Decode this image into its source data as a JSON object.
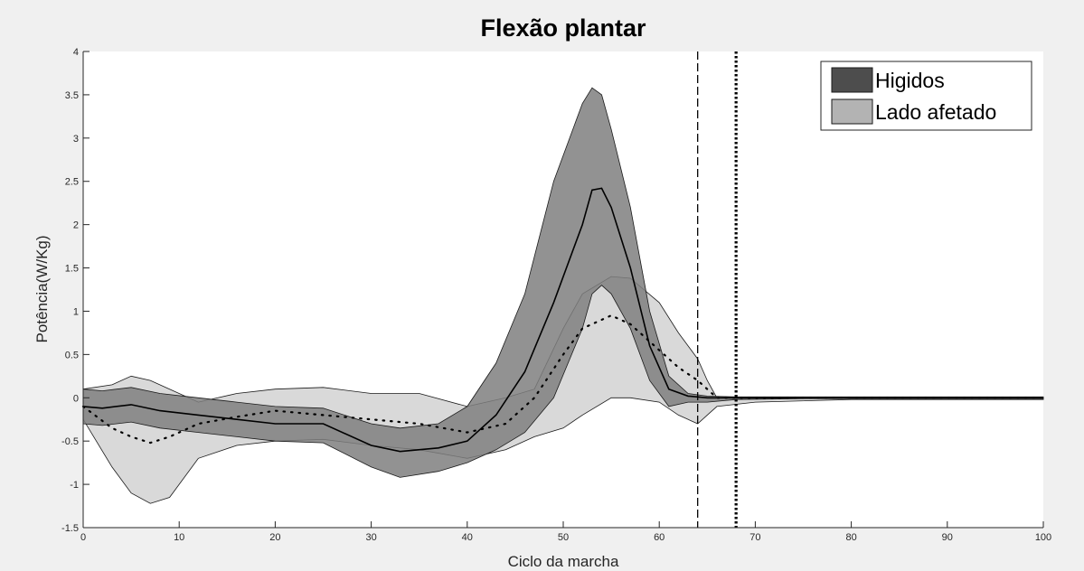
{
  "chart_data": {
    "type": "area",
    "title": "Flexão plantar",
    "xlabel": "Ciclo da marcha",
    "ylabel": "Potência(W/Kg)",
    "xlim": [
      0,
      100
    ],
    "ylim": [
      -1.5,
      4
    ],
    "xticks": [
      0,
      10,
      20,
      30,
      40,
      50,
      60,
      70,
      80,
      90,
      100
    ],
    "yticks": [
      -1.5,
      -1,
      -0.5,
      0,
      0.5,
      1,
      1.5,
      2,
      2.5,
      3,
      3.5,
      4
    ],
    "grid": false,
    "legend_position": "top-right",
    "legend": [
      {
        "name": "Higidos",
        "color": "#4d4d4d"
      },
      {
        "name": "Lado afetado",
        "color": "#b3b3b3"
      }
    ],
    "colors": {
      "higidos_band": "#7f7f7f",
      "afetado_band": "#d9d9d9",
      "line": "#000000",
      "background": "#ffffff"
    },
    "series": [
      {
        "name": "Higidos",
        "style": "solid-mean-with-dark-band",
        "x": [
          0,
          2,
          5,
          8,
          12,
          16,
          20,
          25,
          30,
          33,
          37,
          40,
          43,
          46,
          49,
          52,
          53,
          54,
          55,
          57,
          59,
          61,
          63,
          65,
          68,
          75,
          85,
          95,
          100
        ],
        "mean": [
          -0.1,
          -0.12,
          -0.08,
          -0.15,
          -0.2,
          -0.25,
          -0.3,
          -0.3,
          -0.55,
          -0.62,
          -0.58,
          -0.5,
          -0.2,
          0.3,
          1.1,
          2.0,
          2.4,
          2.42,
          2.2,
          1.5,
          0.6,
          0.1,
          0.02,
          0.0,
          0.0,
          0.0,
          0.0,
          0.0,
          0.0
        ],
        "upper": [
          0.1,
          0.08,
          0.12,
          0.05,
          0.0,
          -0.05,
          -0.1,
          -0.12,
          -0.3,
          -0.35,
          -0.3,
          -0.1,
          0.4,
          1.2,
          2.5,
          3.4,
          3.58,
          3.5,
          3.1,
          2.2,
          1.0,
          0.25,
          0.05,
          0.02,
          0.01,
          0.01,
          0.01,
          0.01,
          0.01
        ],
        "lower": [
          -0.3,
          -0.32,
          -0.28,
          -0.35,
          -0.4,
          -0.45,
          -0.5,
          -0.52,
          -0.8,
          -0.92,
          -0.85,
          -0.75,
          -0.6,
          -0.4,
          0.0,
          0.8,
          1.2,
          1.3,
          1.2,
          0.8,
          0.2,
          -0.1,
          -0.05,
          -0.05,
          -0.02,
          -0.01,
          -0.01,
          -0.01,
          -0.01
        ]
      },
      {
        "name": "Lado afetado",
        "style": "dotted-mean-with-light-band",
        "x": [
          0,
          3,
          5,
          7,
          9,
          12,
          16,
          20,
          25,
          30,
          35,
          40,
          44,
          47,
          50,
          52,
          55,
          57,
          60,
          62,
          64,
          65,
          66,
          70,
          80,
          90,
          100
        ],
        "mean": [
          -0.1,
          -0.35,
          -0.45,
          -0.52,
          -0.45,
          -0.3,
          -0.22,
          -0.15,
          -0.2,
          -0.25,
          -0.3,
          -0.4,
          -0.3,
          0.0,
          0.5,
          0.8,
          0.95,
          0.85,
          0.55,
          0.35,
          0.2,
          0.1,
          0.0,
          0.0,
          0.0,
          0.0,
          0.0
        ],
        "upper": [
          0.1,
          0.15,
          0.25,
          0.2,
          0.1,
          -0.05,
          0.05,
          0.1,
          0.12,
          0.05,
          0.05,
          -0.1,
          0.0,
          0.1,
          0.8,
          1.2,
          1.4,
          1.38,
          1.1,
          0.75,
          0.45,
          0.2,
          0.0,
          0.0,
          0.0,
          0.0,
          0.0
        ],
        "lower": [
          -0.25,
          -0.8,
          -1.1,
          -1.22,
          -1.15,
          -0.7,
          -0.55,
          -0.5,
          -0.48,
          -0.55,
          -0.6,
          -0.7,
          -0.6,
          -0.45,
          -0.35,
          -0.2,
          0.0,
          0.0,
          -0.05,
          -0.2,
          -0.3,
          -0.2,
          -0.1,
          -0.05,
          -0.02,
          -0.02,
          -0.02
        ]
      }
    ],
    "vertical_lines": [
      {
        "x": 64,
        "style": "dashed"
      },
      {
        "x": 68,
        "style": "dotted"
      }
    ]
  }
}
